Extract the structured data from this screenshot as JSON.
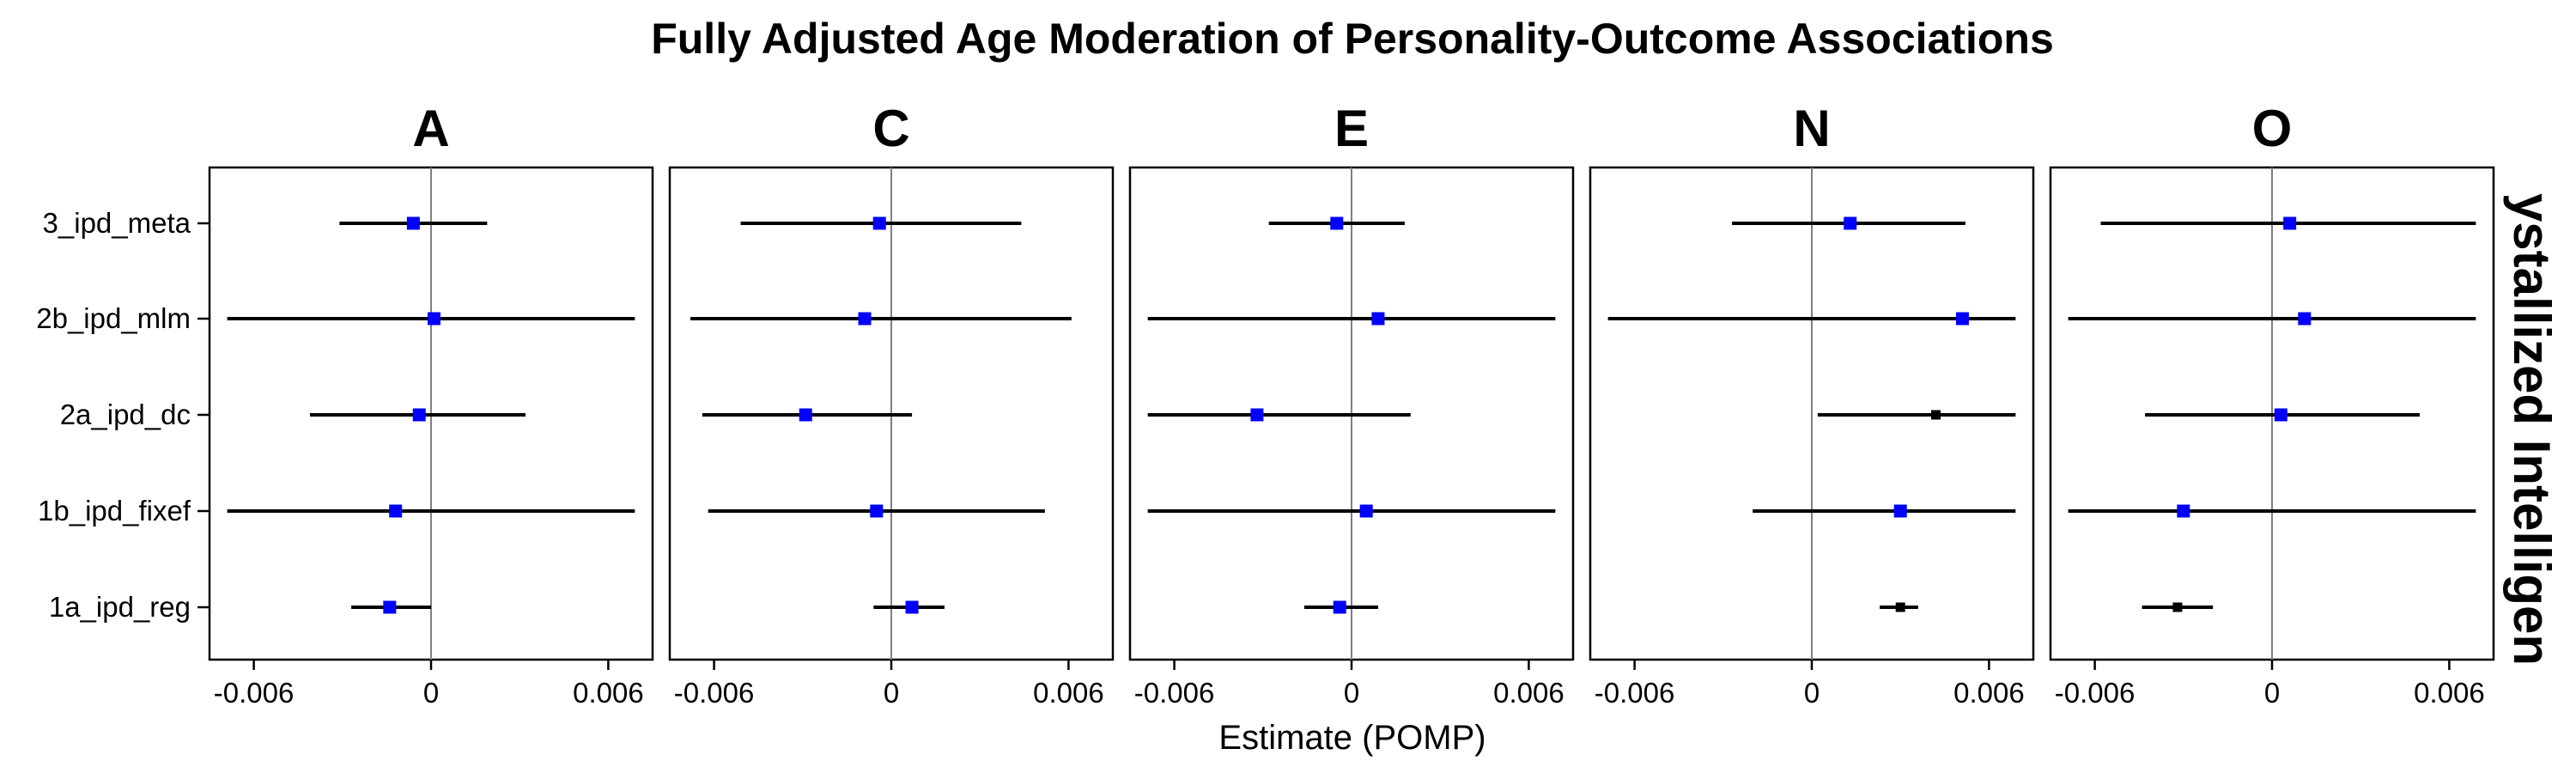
{
  "chart_data": {
    "type": "forest",
    "title": "Fully Adjusted Age Moderation of Personality-Outcome Associations",
    "xlabel": "Estimate (POMP)",
    "ylabel": "",
    "strip_label": "ystallized Intelligen",
    "x_ticks": [
      -0.006,
      0,
      0.006
    ],
    "x_tick_labels": [
      "-0.006",
      "0",
      "0.006"
    ],
    "xlim": [
      -0.0075,
      0.0075
    ],
    "categories": [
      "3_ipd_meta",
      "2b_ipd_mlm",
      "2a_ipd_dc",
      "1b_ipd_fixef",
      "1a_ipd_reg"
    ],
    "colors": {
      "significant": "#0000ff",
      "nonsignificant": "#000000"
    },
    "facets": [
      {
        "name": "A",
        "rows": [
          {
            "model": "3_ipd_meta",
            "estimate": -0.0006,
            "lower": -0.0031,
            "upper": 0.0019,
            "color": "#0000ff"
          },
          {
            "model": "2b_ipd_mlm",
            "estimate": 0.0001,
            "lower": -0.0069,
            "upper": 0.0069,
            "color": "#0000ff"
          },
          {
            "model": "2a_ipd_dc",
            "estimate": -0.0004,
            "lower": -0.0041,
            "upper": 0.0032,
            "color": "#0000ff"
          },
          {
            "model": "1b_ipd_fixef",
            "estimate": -0.0012,
            "lower": -0.0069,
            "upper": 0.0069,
            "color": "#0000ff"
          },
          {
            "model": "1a_ipd_reg",
            "estimate": -0.0014,
            "lower": -0.0027,
            "upper": 0.0,
            "color": "#0000ff"
          }
        ]
      },
      {
        "name": "C",
        "rows": [
          {
            "model": "3_ipd_meta",
            "estimate": -0.0004,
            "lower": -0.0051,
            "upper": 0.0044,
            "color": "#0000ff"
          },
          {
            "model": "2b_ipd_mlm",
            "estimate": -0.0009,
            "lower": -0.0068,
            "upper": 0.0061,
            "color": "#0000ff"
          },
          {
            "model": "2a_ipd_dc",
            "estimate": -0.0029,
            "lower": -0.0064,
            "upper": 0.0007,
            "color": "#0000ff"
          },
          {
            "model": "1b_ipd_fixef",
            "estimate": -0.0005,
            "lower": -0.0062,
            "upper": 0.0052,
            "color": "#0000ff"
          },
          {
            "model": "1a_ipd_reg",
            "estimate": 0.0007,
            "lower": -0.0006,
            "upper": 0.0018,
            "color": "#0000ff"
          }
        ]
      },
      {
        "name": "E",
        "rows": [
          {
            "model": "3_ipd_meta",
            "estimate": -0.0005,
            "lower": -0.0028,
            "upper": 0.0018,
            "color": "#0000ff"
          },
          {
            "model": "2b_ipd_mlm",
            "estimate": 0.0009,
            "lower": -0.0069,
            "upper": 0.0069,
            "color": "#0000ff"
          },
          {
            "model": "2a_ipd_dc",
            "estimate": -0.0032,
            "lower": -0.0069,
            "upper": 0.002,
            "color": "#0000ff"
          },
          {
            "model": "1b_ipd_fixef",
            "estimate": 0.0005,
            "lower": -0.0069,
            "upper": 0.0069,
            "color": "#0000ff"
          },
          {
            "model": "1a_ipd_reg",
            "estimate": -0.0004,
            "lower": -0.0016,
            "upper": 0.0009,
            "color": "#0000ff"
          }
        ]
      },
      {
        "name": "N",
        "rows": [
          {
            "model": "3_ipd_meta",
            "estimate": 0.0013,
            "lower": -0.0027,
            "upper": 0.0052,
            "color": "#0000ff"
          },
          {
            "model": "2b_ipd_mlm",
            "estimate": 0.0051,
            "lower": -0.0069,
            "upper": 0.0069,
            "color": "#0000ff"
          },
          {
            "model": "2a_ipd_dc",
            "estimate": 0.0042,
            "lower": 0.0002,
            "upper": 0.0069,
            "color": "#000000"
          },
          {
            "model": "1b_ipd_fixef",
            "estimate": 0.003,
            "lower": -0.002,
            "upper": 0.0069,
            "color": "#0000ff"
          },
          {
            "model": "1a_ipd_reg",
            "estimate": 0.003,
            "lower": 0.0023,
            "upper": 0.0036,
            "color": "#000000"
          }
        ]
      },
      {
        "name": "O",
        "rows": [
          {
            "model": "3_ipd_meta",
            "estimate": 0.0006,
            "lower": -0.0058,
            "upper": 0.0069,
            "color": "#0000ff"
          },
          {
            "model": "2b_ipd_mlm",
            "estimate": 0.0011,
            "lower": -0.0069,
            "upper": 0.0069,
            "color": "#0000ff"
          },
          {
            "model": "2a_ipd_dc",
            "estimate": 0.0003,
            "lower": -0.0043,
            "upper": 0.005,
            "color": "#0000ff"
          },
          {
            "model": "1b_ipd_fixef",
            "estimate": -0.003,
            "lower": -0.0069,
            "upper": 0.0069,
            "color": "#0000ff"
          },
          {
            "model": "1a_ipd_reg",
            "estimate": -0.0032,
            "lower": -0.0044,
            "upper": -0.002,
            "color": "#000000"
          }
        ]
      }
    ]
  }
}
